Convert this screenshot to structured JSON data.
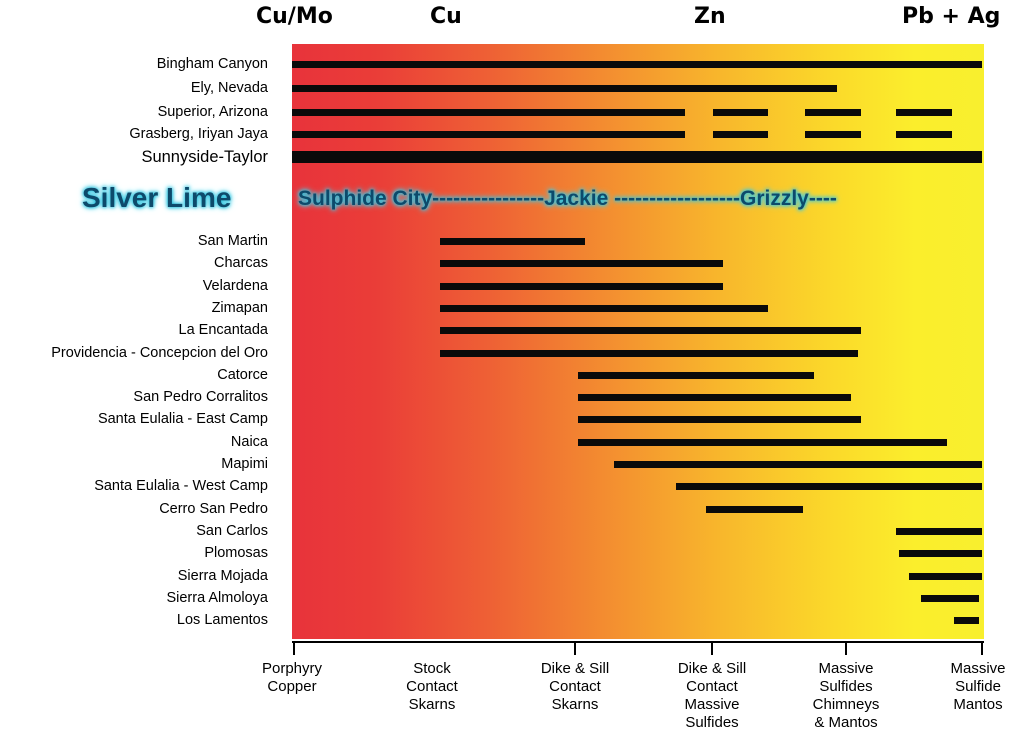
{
  "header": {
    "metals": [
      "Cu/Mo",
      "Cu",
      "Zn",
      "Pb + Ag"
    ]
  },
  "colors": {
    "gradient_start": "#e8333b",
    "gradient_mid": "#f38c30",
    "gradient_end": "#f8ef2e",
    "bars": "#0a0a0a",
    "highlight_glow": "#2ec4e0",
    "highlight_text": "#0d4a6b"
  },
  "x_categories": [
    "Porphyry\nCopper",
    "Stock\nContact\nSkarns",
    "Dike & Sill\nContact\nSkarns",
    "Dike & Sill\nContact\nMassive\nSulfides",
    "Massive\nSulfides\nChimneys\n& Mantos",
    "Massive\nSulfide\nMantos"
  ],
  "top_deposits": [
    {
      "name": "Bingham Canyon",
      "segments": [
        [
          0.0,
          5.0
        ]
      ]
    },
    {
      "name": "Ely, Nevada",
      "segments": [
        [
          0.0,
          3.95
        ]
      ]
    },
    {
      "name": "Superior, Arizona",
      "segments": [
        [
          0.0,
          2.85
        ],
        [
          3.05,
          3.45
        ],
        [
          3.72,
          4.12
        ],
        [
          4.38,
          4.78
        ]
      ]
    },
    {
      "name": "Grasberg, Iriyan Jaya",
      "segments": [
        [
          0.0,
          2.85
        ],
        [
          3.05,
          3.45
        ],
        [
          3.72,
          4.12
        ],
        [
          4.38,
          4.78
        ]
      ]
    },
    {
      "name": "Sunnyside-Taylor",
      "segments": [
        [
          0.0,
          5.0
        ]
      ],
      "emphasis": true
    }
  ],
  "silver_lime": {
    "title": "Silver Lime",
    "band_text": "Sulphide City----------------Jackie ------------------Grizzly----"
  },
  "deposits": [
    {
      "name": "San Martin",
      "segments": [
        [
          1.07,
          2.12
        ]
      ]
    },
    {
      "name": "Charcas",
      "segments": [
        [
          1.07,
          3.12
        ]
      ]
    },
    {
      "name": "Velardena",
      "segments": [
        [
          1.07,
          3.12
        ]
      ]
    },
    {
      "name": "Zimapan",
      "segments": [
        [
          1.07,
          3.45
        ]
      ]
    },
    {
      "name": "La Encantada",
      "segments": [
        [
          1.07,
          4.12
        ]
      ]
    },
    {
      "name": "Providencia - Concepcion del Oro",
      "segments": [
        [
          1.07,
          4.1
        ]
      ]
    },
    {
      "name": "Catorce",
      "segments": [
        [
          2.07,
          3.78
        ]
      ]
    },
    {
      "name": "San Pedro Corralitos",
      "segments": [
        [
          2.07,
          4.05
        ]
      ]
    },
    {
      "name": "Santa Eulalia - East Camp",
      "segments": [
        [
          2.07,
          4.12
        ]
      ]
    },
    {
      "name": "Naica",
      "segments": [
        [
          2.07,
          4.75
        ]
      ]
    },
    {
      "name": "Mapimi",
      "segments": [
        [
          2.33,
          5.0
        ]
      ]
    },
    {
      "name": "Santa Eulalia - West Camp",
      "segments": [
        [
          2.78,
          5.0
        ]
      ]
    },
    {
      "name": "Cerro San Pedro",
      "segments": [
        [
          3.0,
          3.7
        ]
      ]
    },
    {
      "name": "San Carlos",
      "segments": [
        [
          4.38,
          5.0
        ]
      ]
    },
    {
      "name": "Plomosas",
      "segments": [
        [
          4.4,
          5.0
        ]
      ]
    },
    {
      "name": "Sierra Mojada",
      "segments": [
        [
          4.47,
          5.0
        ]
      ]
    },
    {
      "name": "Sierra Almoloya",
      "segments": [
        [
          4.56,
          4.98
        ]
      ]
    },
    {
      "name": "Los Lamentos",
      "segments": [
        [
          4.8,
          4.98
        ]
      ]
    }
  ]
}
